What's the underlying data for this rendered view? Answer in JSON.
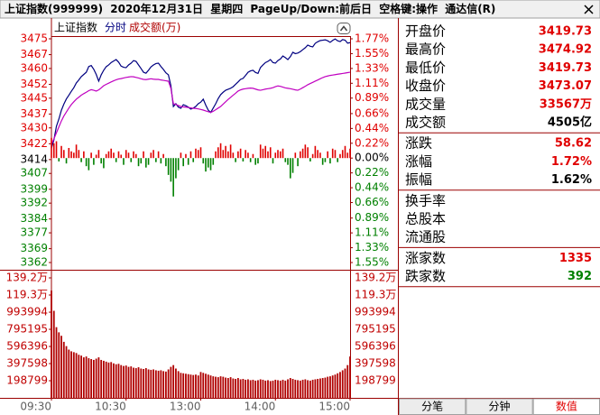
{
  "header": {
    "title": "上证指数(999999) 2020年12月31日 星期四 PageUp/Down:前后日 空格键:操作 通达信(R)"
  },
  "chart_data": {
    "type": "intraday",
    "title": "上证指数",
    "x": [
      0,
      2,
      4,
      6,
      8,
      10,
      12,
      14,
      16,
      18,
      20,
      22,
      24,
      26,
      28,
      30,
      32,
      34,
      36,
      38,
      40,
      42,
      44,
      46,
      48,
      50,
      52,
      54,
      56,
      58,
      60,
      62,
      64,
      66,
      68,
      70,
      72,
      74,
      76,
      78,
      80,
      82,
      84,
      86,
      88,
      90,
      92,
      94,
      96,
      98,
      100,
      102,
      104,
      106,
      108,
      110,
      112,
      114,
      116,
      118,
      120,
      122,
      124,
      126,
      128,
      130,
      132,
      134,
      136,
      138,
      140,
      142,
      144,
      146,
      148,
      150,
      152,
      154,
      156,
      158,
      160,
      162,
      164,
      166,
      168,
      170,
      172,
      174,
      176,
      178,
      180,
      182,
      184,
      186,
      188,
      190,
      192,
      194,
      196,
      198,
      200,
      202,
      204,
      206,
      208,
      210,
      212,
      214,
      216,
      218,
      220,
      222,
      224,
      226,
      228,
      230,
      232,
      234,
      236,
      238,
      240
    ],
    "xlim": [
      0,
      240
    ],
    "xticks": [
      {
        "value": 0,
        "label": "09:30"
      },
      {
        "value": 60,
        "label": "10:30"
      },
      {
        "value": 120,
        "label": "13:00"
      },
      {
        "value": 180,
        "label": "14:00"
      },
      {
        "value": 240,
        "label": "15:00"
      }
    ],
    "ylim": [
      3362,
      3475
    ],
    "yticks": [
      3475,
      3467,
      3460,
      3452,
      3445,
      3437,
      3430,
      3422,
      3414,
      3407,
      3399,
      3392,
      3384,
      3377,
      3369,
      3362
    ],
    "y2lim": [
      -1.55,
      1.77
    ],
    "y2ticks": [
      {
        "value": 1.77,
        "label": "1.77%"
      },
      {
        "value": 1.55,
        "label": "1.55%"
      },
      {
        "value": 1.33,
        "label": "1.33%"
      },
      {
        "value": 1.11,
        "label": "1.11%"
      },
      {
        "value": 0.89,
        "label": "0.89%"
      },
      {
        "value": 0.66,
        "label": "0.66%"
      },
      {
        "value": 0.44,
        "label": "0.44%"
      },
      {
        "value": 0.22,
        "label": "0.22%"
      },
      {
        "value": 0,
        "label": "0.00%"
      },
      {
        "value": -0.22,
        "label": "0.22%"
      },
      {
        "value": -0.44,
        "label": "0.44%"
      },
      {
        "value": -0.66,
        "label": "0.66%"
      },
      {
        "value": -0.89,
        "label": "0.89%"
      },
      {
        "value": -1.11,
        "label": "1.11%"
      },
      {
        "value": -1.33,
        "label": "1.33%"
      },
      {
        "value": -1.55,
        "label": "1.55%"
      }
    ],
    "up_color": "#e00000",
    "down_color": "#008000",
    "series": [
      {
        "name": "分时",
        "color": "#000080",
        "values": [
          3419.73,
          3424.0,
          3430.8,
          3434.5,
          3438.9,
          3442.0,
          3444.6,
          3446.5,
          3448.5,
          3450.3,
          3452.7,
          3454.2,
          3455.9,
          3457.0,
          3458.1,
          3461.0,
          3461.5,
          3459.6,
          3457.0,
          3453.6,
          3456.8,
          3459.1,
          3460.9,
          3461.8,
          3463.0,
          3463.8,
          3464.5,
          3463.2,
          3461.2,
          3460.6,
          3460.4,
          3461.8,
          3462.7,
          3464.0,
          3463.6,
          3461.8,
          3460.0,
          3458.1,
          3457.6,
          3459.1,
          3460.8,
          3461.8,
          3462.5,
          3462.7,
          3461.0,
          3459.5,
          3457.8,
          3456.8,
          3451.3,
          3440.8,
          3442.2,
          3440.5,
          3439.9,
          3441.7,
          3441.2,
          3440.5,
          3439.5,
          3440.0,
          3440.8,
          3442.2,
          3443.0,
          3444.5,
          3441.5,
          3439.0,
          3437.8,
          3440.0,
          3442.2,
          3444.8,
          3446.8,
          3448.0,
          3449.0,
          3449.5,
          3450.0,
          3450.8,
          3452.0,
          3453.2,
          3454.5,
          3455.0,
          3456.5,
          3458.1,
          3458.8,
          3459.1,
          3458.0,
          3457.5,
          3460.5,
          3461.8,
          3463.0,
          3463.6,
          3464.5,
          3463.0,
          3462.7,
          3464.0,
          3464.8,
          3466.3,
          3465.5,
          3464.5,
          3466.0,
          3468.2,
          3467.5,
          3467.8,
          3468.5,
          3469.5,
          3470.5,
          3471.8,
          3471.2,
          3470.9,
          3472.7,
          3473.5,
          3474.1,
          3474.3,
          3474.5,
          3474.0,
          3473.2,
          3474.2,
          3474.92,
          3474.0,
          3473.6,
          3474.6,
          3474.3,
          3472.8,
          3473.07
        ]
      },
      {
        "color": "#c000c0",
        "values": [
          3421.7,
          3424.5,
          3427.5,
          3430.5,
          3433.5,
          3436.0,
          3438.0,
          3440.0,
          3441.8,
          3443.2,
          3444.5,
          3445.5,
          3446.5,
          3447.3,
          3448.0,
          3448.8,
          3449.3,
          3449.0,
          3448.6,
          3449.2,
          3450.2,
          3451.3,
          3452.0,
          3452.6,
          3453.2,
          3453.8,
          3454.3,
          3454.7,
          3454.9,
          3455.2,
          3455.5,
          3455.7,
          3455.9,
          3455.8,
          3455.5,
          3455.2,
          3454.8,
          3454.5,
          3454.4,
          3454.6,
          3454.8,
          3454.6,
          3454.5,
          3454.5,
          3454.2,
          3454.0,
          3453.8,
          3453.6,
          3450.0,
          3442.2,
          3441.8,
          3441.3,
          3440.8,
          3440.6,
          3440.5,
          3440.3,
          3440.1,
          3439.9,
          3439.8,
          3439.6,
          3439.3,
          3439.0,
          3438.6,
          3438.2,
          3437.8,
          3438.4,
          3439.2,
          3440.0,
          3440.8,
          3442.0,
          3443.2,
          3444.4,
          3445.4,
          3446.5,
          3447.5,
          3448.6,
          3449.2,
          3449.6,
          3449.8,
          3450.0,
          3450.1,
          3450.0,
          3449.6,
          3449.2,
          3449.0,
          3449.3,
          3449.6,
          3449.8,
          3450.0,
          3450.3,
          3450.8,
          3451.2,
          3451.0,
          3450.6,
          3450.2,
          3450.0,
          3449.8,
          3449.5,
          3449.2,
          3449.0,
          3449.6,
          3450.3,
          3451.0,
          3451.8,
          3452.4,
          3453.0,
          3453.6,
          3454.2,
          3454.8,
          3455.4,
          3455.9,
          3456.2,
          3456.5,
          3456.7,
          3456.9,
          3457.1,
          3457.3,
          3457.5,
          3457.7,
          3457.9,
          3458.1
        ]
      },
      {
        "type": "bar",
        "axis": "y2",
        "values": [
          0.3,
          0.22,
          0.25,
          -0.05,
          0.18,
          0.12,
          -0.08,
          0.15,
          0.1,
          0.08,
          0.2,
          0.12,
          -0.06,
          0.1,
          -0.12,
          -0.18,
          0.08,
          -0.1,
          0.05,
          0.12,
          -0.08,
          -0.15,
          0.06,
          0.1,
          0.14,
          0.08,
          -0.06,
          0.1,
          0.05,
          -0.1,
          0.12,
          0.08,
          -0.06,
          0.1,
          0.06,
          -0.12,
          -0.08,
          0.1,
          -0.14,
          -0.1,
          0.08,
          0.12,
          -0.06,
          0.1,
          -0.08,
          0.06,
          -0.12,
          -0.25,
          -0.35,
          -0.57,
          -0.3,
          -0.18,
          0.08,
          -0.12,
          0.06,
          -0.1,
          0.1,
          -0.06,
          0.14,
          0.12,
          0.16,
          -0.08,
          -0.2,
          -0.14,
          -0.18,
          -0.1,
          0.1,
          0.16,
          0.22,
          0.12,
          0.18,
          0.1,
          0.2,
          0.08,
          -0.06,
          0.1,
          0.14,
          -0.05,
          0.12,
          0.08,
          -0.06,
          0.06,
          -0.1,
          -0.08,
          0.2,
          0.14,
          0.18,
          0.1,
          0.16,
          -0.08,
          0.08,
          0.12,
          0.1,
          0.14,
          -0.06,
          -0.1,
          -0.3,
          -0.22,
          0.08,
          -0.12,
          0.1,
          0.14,
          0.2,
          0.16,
          -0.05,
          0.06,
          0.18,
          0.12,
          0.08,
          -0.1,
          -0.06,
          0.1,
          -0.08,
          0.14,
          0.12,
          -0.06,
          0.06,
          0.12,
          0.18,
          0.08,
          0.14
        ]
      }
    ],
    "volume": {
      "name": "成交额(万)",
      "color": "#b00000",
      "ylim": [
        0,
        1392000
      ],
      "yticks": [
        {
          "value": 1392000,
          "label": "139.2万"
        },
        {
          "value": 1193000,
          "label": "119.3万"
        },
        993994,
        795195,
        596396,
        397598,
        198799
      ],
      "values": [
        1245000,
        1010000,
        820000,
        760000,
        720000,
        650000,
        600000,
        560000,
        540000,
        530000,
        520000,
        500000,
        490000,
        470000,
        480000,
        460000,
        450000,
        440000,
        455000,
        470000,
        440000,
        430000,
        420000,
        410000,
        415000,
        400000,
        390000,
        395000,
        380000,
        370000,
        375000,
        360000,
        365000,
        350000,
        345000,
        355000,
        340000,
        335000,
        345000,
        330000,
        325000,
        330000,
        320000,
        315000,
        320000,
        310000,
        305000,
        330000,
        360000,
        380000,
        340000,
        310000,
        290000,
        285000,
        280000,
        275000,
        270000,
        265000,
        270000,
        260000,
        300000,
        290000,
        280000,
        270000,
        260000,
        250000,
        245000,
        240000,
        250000,
        245000,
        235000,
        230000,
        240000,
        225000,
        220000,
        230000,
        215000,
        220000,
        210000,
        215000,
        205000,
        210000,
        200000,
        205000,
        215000,
        210000,
        200000,
        205000,
        195000,
        200000,
        210000,
        205000,
        200000,
        210000,
        200000,
        215000,
        230000,
        220000,
        210000,
        205000,
        200000,
        210000,
        215000,
        205000,
        200000,
        210000,
        215000,
        220000,
        225000,
        230000,
        235000,
        245000,
        250000,
        260000,
        270000,
        285000,
        300000,
        320000,
        340000,
        380000,
        480000
      ]
    }
  },
  "info": {
    "groups": [
      [
        {
          "label": "开盘价",
          "value": "3419.73",
          "color": "#e00000"
        },
        {
          "label": "最高价",
          "value": "3474.92",
          "color": "#e00000"
        },
        {
          "label": "最低价",
          "value": "3419.73",
          "color": "#e00000"
        },
        {
          "label": "收盘价",
          "value": "3473.07",
          "color": "#e00000"
        },
        {
          "label": "成交量",
          "value": "33567万",
          "color": "#e00000"
        },
        {
          "label": "成交额",
          "value": "4505亿",
          "color": "#000000"
        }
      ],
      [
        {
          "label": "涨跌",
          "value": "58.62",
          "color": "#e00000"
        },
        {
          "label": "涨幅",
          "value": "1.72%",
          "color": "#e00000"
        },
        {
          "label": "振幅",
          "value": "1.62%",
          "color": "#000000"
        }
      ],
      [
        {
          "label": "换手率"
        },
        {
          "label": "总股本"
        },
        {
          "label": "流通股"
        }
      ],
      [
        {
          "label": "涨家数",
          "value": "1335",
          "color": "#e00000"
        },
        {
          "label": "跌家数",
          "value": "392",
          "color": "#008000"
        }
      ]
    ]
  },
  "tabs": [
    "分笔",
    "分钟",
    "数值"
  ]
}
